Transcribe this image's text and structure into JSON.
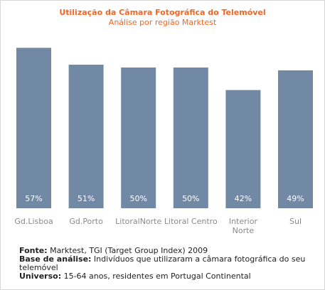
{
  "chart_data": {
    "type": "bar",
    "title": "Utilização da Câmara Fotográfica do Telemóvel",
    "subtitle": "Análise por região Marktest",
    "categories": [
      "Gd.Lisboa",
      "Gd.Porto",
      "LitoralNorte",
      "Litoral Centro",
      "Interior Norte",
      "Sul"
    ],
    "category_lines": [
      [
        "Gd.Lisboa"
      ],
      [
        "Gd.Porto"
      ],
      [
        "LitoralNorte"
      ],
      [
        "Litoral Centro"
      ],
      [
        "Interior",
        "Norte"
      ],
      [
        "Sul"
      ]
    ],
    "values": [
      57,
      51,
      50,
      50,
      42,
      49
    ],
    "value_labels": [
      "57%",
      "51%",
      "50%",
      "50%",
      "42%",
      "49%"
    ],
    "ylim": [
      0,
      60
    ],
    "grid": false,
    "bar_color": "#7289a6"
  },
  "notes": {
    "fonte_label": "Fonte:",
    "fonte_text": " Marktest, TGI (Target Group Index) 2009",
    "base_label": "Base de análise:",
    "base_text": " Indivíduos que utilizaram a câmara fotográfica do seu telemóvel",
    "universo_label": "Universo:",
    "universo_text": " 15-64 anos, residentes em Portugal Continental"
  }
}
